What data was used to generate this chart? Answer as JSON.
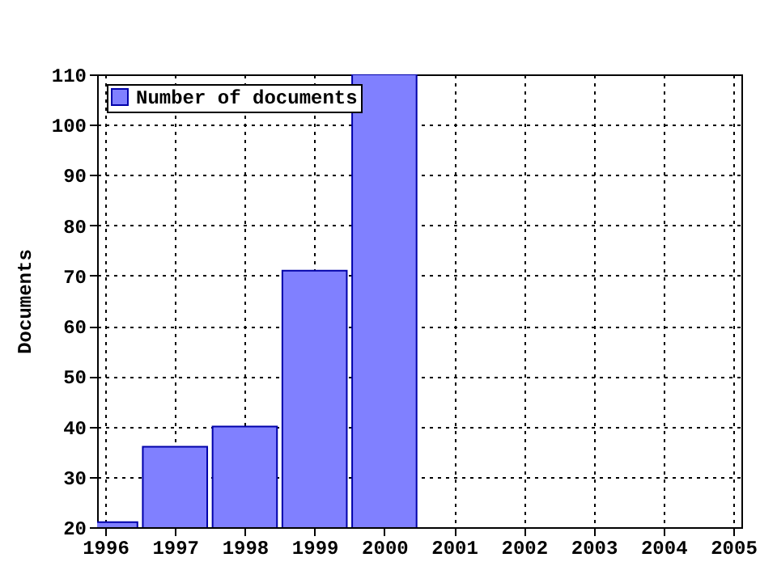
{
  "chart_data": {
    "type": "bar",
    "ylabel": "Documents",
    "x": [
      1996,
      1997,
      1998,
      1999,
      2000
    ],
    "series": [
      {
        "name": "Number of documents",
        "color": "#8080ff",
        "values": [
          21,
          36,
          40,
          71,
          110
        ]
      }
    ],
    "xlim": [
      1996,
      2005
    ],
    "xticks": [
      1996,
      1997,
      1998,
      1999,
      2000,
      2001,
      2002,
      2003,
      2004,
      2005
    ],
    "ylim": [
      20,
      110
    ],
    "yticks": [
      20,
      30,
      40,
      50,
      60,
      70,
      80,
      90,
      100,
      110
    ],
    "grid": true,
    "legend": "top left"
  }
}
